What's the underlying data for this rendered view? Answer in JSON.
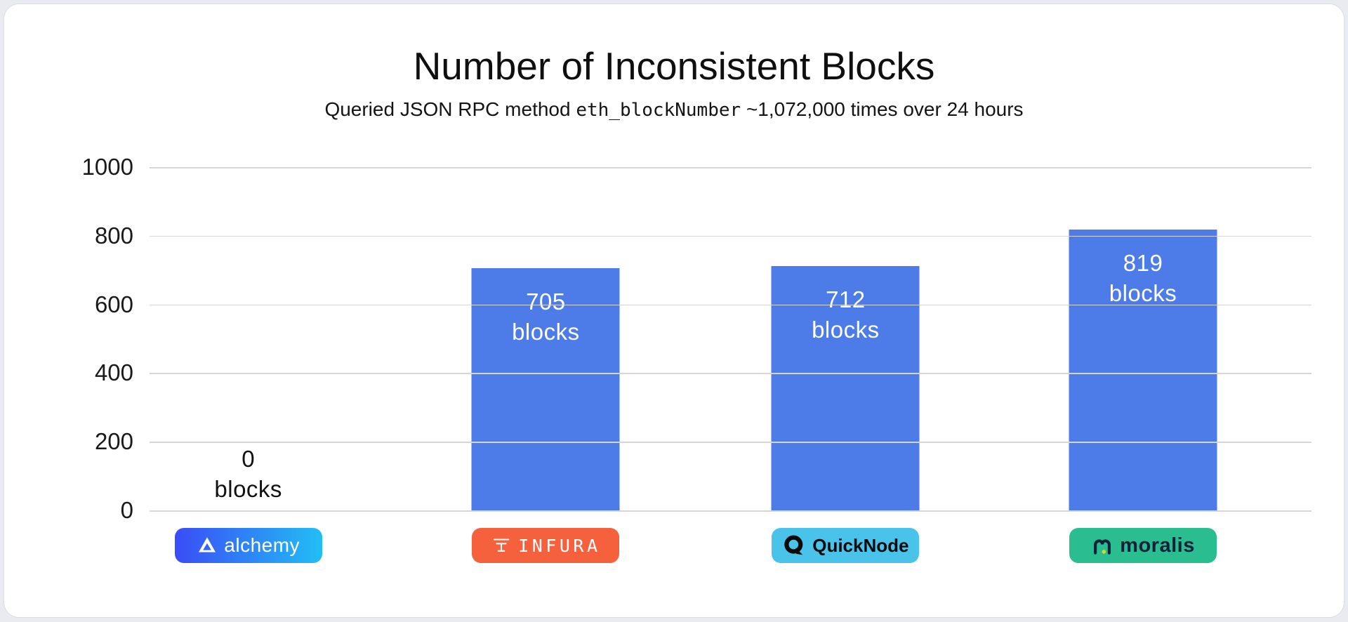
{
  "page": {
    "background_color": "#e9ebf0",
    "card_background_color": "#ffffff"
  },
  "header": {
    "title": "Number of Inconsistent Blocks",
    "subtitle_prefix": "Queried JSON RPC method ",
    "subtitle_code": "eth_blockNumber",
    "subtitle_suffix": " ~1,072,000 times over 24 hours"
  },
  "chart_data": {
    "type": "bar",
    "title": "Number of Inconsistent Blocks",
    "subtitle": "Queried JSON RPC method eth_blockNumber ~1,072,000 times over 24 hours",
    "categories": [
      "alchemy",
      "INFURA",
      "QuickNode",
      "moralis"
    ],
    "values": [
      0,
      705,
      712,
      819
    ],
    "xlabel": "",
    "ylabel": "",
    "ylim": [
      0,
      1000
    ],
    "yticks": [
      1000,
      800,
      600,
      400,
      200,
      0
    ],
    "grid": true,
    "legend": false,
    "bar_color": "#4d7ce8",
    "value_label_unit": "blocks"
  },
  "bars": [
    {
      "provider": "alchemy",
      "value": 0,
      "line1": "0",
      "line2": "blocks",
      "label_placement": "outside-black"
    },
    {
      "provider": "infura",
      "value": 705,
      "line1": "705",
      "line2": "blocks",
      "label_placement": "inside-white"
    },
    {
      "provider": "quicknode",
      "value": 712,
      "line1": "712",
      "line2": "blocks",
      "label_placement": "inside-white"
    },
    {
      "provider": "moralis",
      "value": 819,
      "line1": "819",
      "line2": "blocks",
      "label_placement": "inside-white"
    }
  ],
  "badges": [
    {
      "name": "alchemy",
      "label": "alchemy",
      "background": "linear-gradient #3a4df6 to #22bef5",
      "text_color": "#ffffff"
    },
    {
      "name": "infura",
      "label": "INFURA",
      "background": "#f6613d",
      "text_color": "#ffffff"
    },
    {
      "name": "quicknode",
      "label": "QuickNode",
      "background": "#49c3e9",
      "text_color": "#0a0a0a"
    },
    {
      "name": "moralis",
      "label": "moralis",
      "background": "#2abd90",
      "text_color": "#13203a",
      "accent_dot_color": "#cfdb2a"
    }
  ]
}
